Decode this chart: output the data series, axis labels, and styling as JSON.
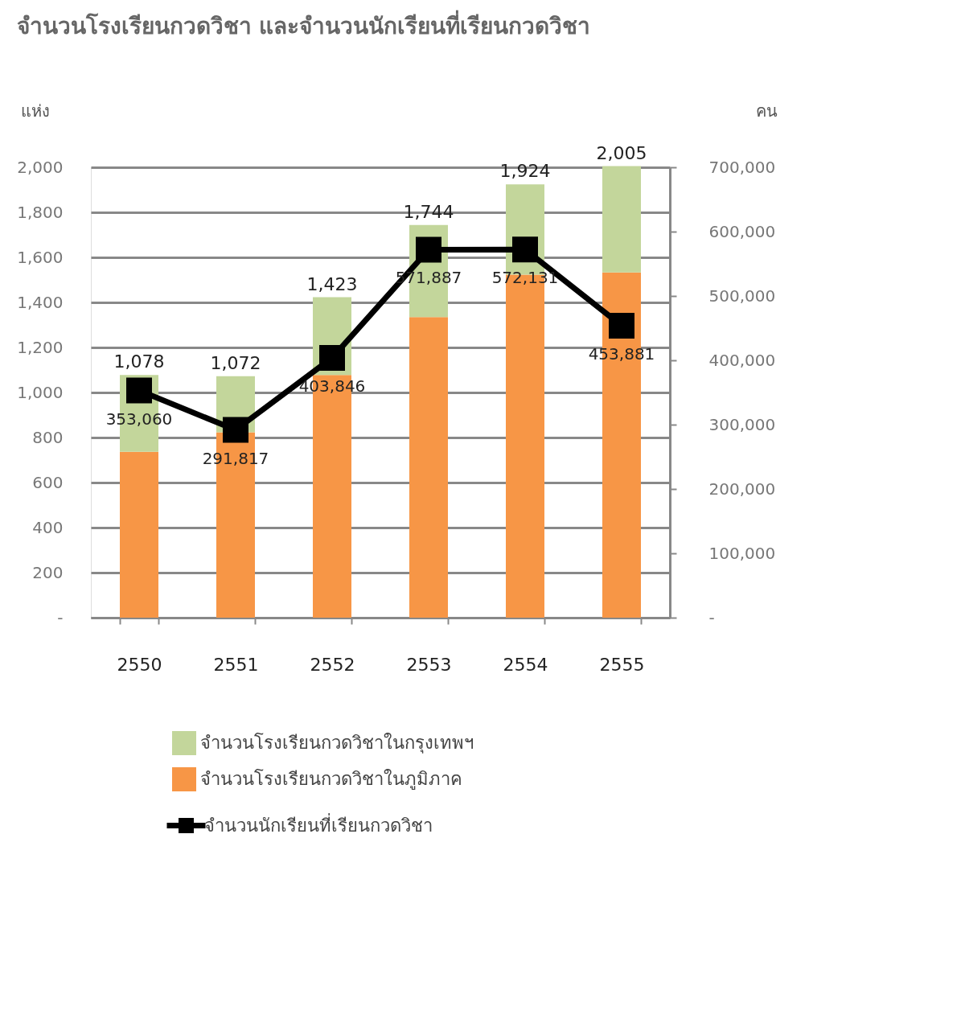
{
  "chart_data": {
    "type": "bar",
    "title": "จำนวนโรงเรียนกวดวิชา และจำนวนนักเรียนที่เรียนกวดวิชา",
    "ylabel": "แห่ง",
    "y2label": "คน",
    "categories": [
      "2550",
      "2551",
      "2552",
      "2553",
      "2554",
      "2555"
    ],
    "stacked": true,
    "series": [
      {
        "name": "จำนวนโรงเรียนกวดวิชาในภูมิภาค",
        "color": "#f79646",
        "values": [
          737,
          823,
          1078,
          1335,
          1523,
          1533
        ]
      },
      {
        "name": "จำนวนโรงเรียนกวดวิชาในกรุงเทพฯ",
        "color": "#c3d69b",
        "values": [
          341,
          249,
          345,
          409,
          401,
          472
        ]
      },
      {
        "name": "จำนวนนักเรียนที่เรียนกวดวิชา",
        "type": "line",
        "axis": "y2",
        "color": "#000000",
        "marker": "square",
        "values": [
          353060,
          291817,
          403846,
          571887,
          572131,
          453881
        ],
        "value_labels": [
          "353,060",
          "291,817",
          "403,846",
          "571,887",
          "572,131",
          "453,881"
        ]
      }
    ],
    "totals": [
      "1,078",
      "1,072",
      "1,423",
      "1,744",
      "1,924",
      "2,005"
    ],
    "ylim": [
      0,
      2000
    ],
    "yticks": [
      {
        "value": 0,
        "label": "-"
      },
      200,
      400,
      600,
      800,
      {
        "value": 1000,
        "label": "1,000"
      },
      {
        "value": 1200,
        "label": "1,200"
      },
      {
        "value": 1400,
        "label": "1,400"
      },
      {
        "value": 1600,
        "label": "1,600"
      },
      {
        "value": 1800,
        "label": "1,800"
      },
      {
        "value": 2000,
        "label": "2,000"
      }
    ],
    "y2lim": [
      0,
      700000
    ],
    "y2ticks": [
      {
        "value": 0,
        "label": "-"
      },
      {
        "value": 100000,
        "label": "100,000"
      },
      {
        "value": 200000,
        "label": "200,000"
      },
      {
        "value": 300000,
        "label": "300,000"
      },
      {
        "value": 400000,
        "label": "400,000"
      },
      {
        "value": 500000,
        "label": "500,000"
      },
      {
        "value": 600000,
        "label": "600,000"
      },
      {
        "value": 700000,
        "label": "700,000"
      }
    ],
    "grid": "y",
    "legend": "bottom"
  }
}
